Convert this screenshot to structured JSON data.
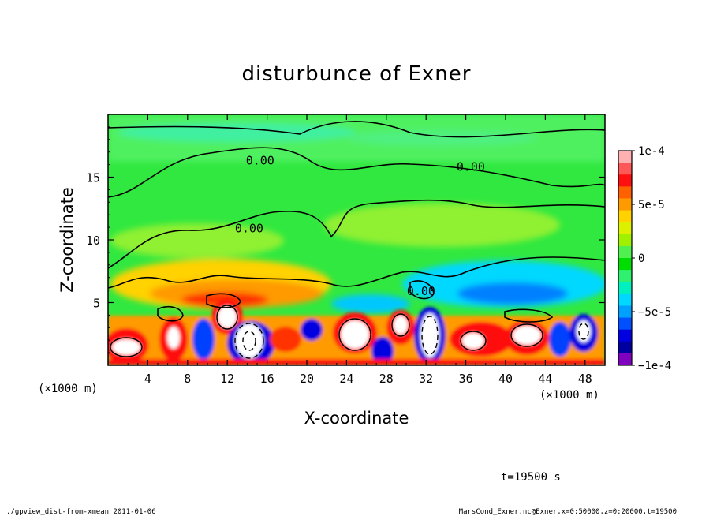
{
  "chart_data": {
    "type": "heatmap",
    "title": "disturbunce of Exner",
    "xlabel": "X-coordinate",
    "ylabel": "Z-coordinate",
    "x_unit": "(×1000 m)",
    "z_unit": "(×1000 m)",
    "xlim": [
      0,
      50
    ],
    "ylim": [
      0,
      20
    ],
    "x_ticks": [
      "4",
      "8",
      "12",
      "16",
      "20",
      "24",
      "28",
      "32",
      "36",
      "40",
      "44",
      "48"
    ],
    "y_ticks": [
      "5",
      "10",
      "15"
    ],
    "colorbar": {
      "min": -0.0001,
      "max": 0.0001,
      "ticks": [
        "1e-4",
        "5e-5",
        "0",
        "−5e-5",
        "−1e-4"
      ],
      "colors": [
        "#ffb0b0",
        "#ff5858",
        "#ff1010",
        "#ff6000",
        "#ff9a00",
        "#ffd200",
        "#ddf000",
        "#a0f000",
        "#50f050",
        "#00dd00",
        "#30f070",
        "#00f0c0",
        "#00d8ff",
        "#00a0ff",
        "#0050ff",
        "#0000e0",
        "#0000a0",
        "#8000c0"
      ]
    },
    "contour_labels": [
      {
        "text": "0.00",
        "x": 15.3,
        "z": 16.0
      },
      {
        "text": "0.00",
        "x": 36.5,
        "z": 15.5
      },
      {
        "text": "0.00",
        "x": 14.2,
        "z": 10.6
      },
      {
        "text": "0.00",
        "x": 31.5,
        "z": 5.6
      }
    ],
    "time_label": "t=19500 s"
  },
  "footer": {
    "left": "./gpview_dist-from-xmean  2011-01-06",
    "right": "MarsCond_Exner.nc@Exner,x=0:50000,z=0:20000,t=19500"
  }
}
